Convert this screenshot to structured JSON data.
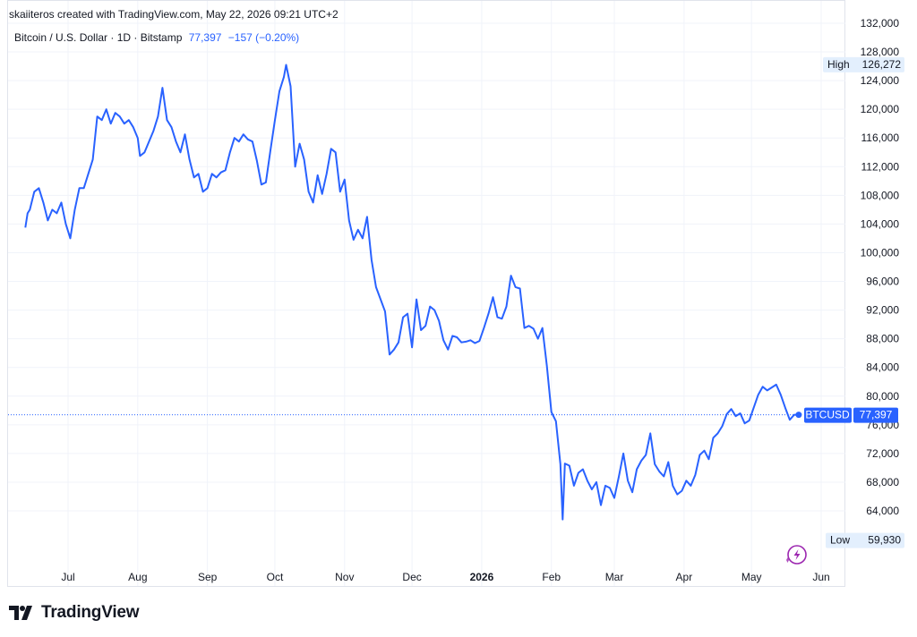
{
  "attribution": "skaiiteros created with TradingView.com, May 22, 2026 09:21 UTC+2",
  "legend": {
    "symbol": "Bitcoin / U.S. Dollar · 1D · Bitstamp",
    "price": "77,397",
    "change": "−157 (−0.20%)"
  },
  "badges": {
    "high_label": "High",
    "high_value": "126,272",
    "low_label": "Low",
    "low_value": "59,930",
    "ticker": "BTCUSD",
    "last_value": "77,397"
  },
  "brand": {
    "name": "TradingView"
  },
  "colors": {
    "line": "#2962ff",
    "badge_bg": "#2962ff",
    "grid": "#f0f3fa",
    "axis_text": "#131722",
    "hl_badge_bg": "#e3effd",
    "accent_icon": "#9c27b0"
  },
  "icons": [
    "lightning-icon",
    "tradingview-logo-icon"
  ],
  "chart_data": {
    "type": "line",
    "title": "",
    "xlabel": "",
    "ylabel": "",
    "ylim": [
      56000,
      132000
    ],
    "yticks": [
      64000,
      68000,
      72000,
      76000,
      80000,
      84000,
      88000,
      92000,
      96000,
      100000,
      104000,
      108000,
      112000,
      116000,
      120000,
      124000,
      128000,
      132000
    ],
    "ytick_labels": [
      "64,000",
      "68,000",
      "72,000",
      "76,000",
      "80,000",
      "84,000",
      "88,000",
      "92,000",
      "96,000",
      "100,000",
      "104,000",
      "108,000",
      "112,000",
      "116,000",
      "120,000",
      "124,000",
      "128,000",
      "132,000"
    ],
    "xlim": [
      "2025-06-11",
      "2026-06-15"
    ],
    "xticks": [
      {
        "date": "2025-07-01",
        "label": "Jul",
        "bold": false
      },
      {
        "date": "2025-08-01",
        "label": "Aug",
        "bold": false
      },
      {
        "date": "2025-09-01",
        "label": "Sep",
        "bold": false
      },
      {
        "date": "2025-10-01",
        "label": "Oct",
        "bold": false
      },
      {
        "date": "2025-11-01",
        "label": "Nov",
        "bold": false
      },
      {
        "date": "2025-12-01",
        "label": "Dec",
        "bold": false
      },
      {
        "date": "2026-01-01",
        "label": "2026",
        "bold": true
      },
      {
        "date": "2026-02-01",
        "label": "Feb",
        "bold": false
      },
      {
        "date": "2026-03-01",
        "label": "Mar",
        "bold": false
      },
      {
        "date": "2026-04-01",
        "label": "Apr",
        "bold": false
      },
      {
        "date": "2026-05-01",
        "label": "May",
        "bold": false
      },
      {
        "date": "2026-06-01",
        "label": "Jun",
        "bold": false
      }
    ],
    "grid": true,
    "last_price": 77397,
    "high": 126272,
    "low": 59930,
    "series": [
      {
        "name": "BTCUSD",
        "points": [
          [
            "2025-06-12",
            103500
          ],
          [
            "2025-06-13",
            105500
          ],
          [
            "2025-06-14",
            106000
          ],
          [
            "2025-06-16",
            108500
          ],
          [
            "2025-06-18",
            109000
          ],
          [
            "2025-06-20",
            107000
          ],
          [
            "2025-06-22",
            104500
          ],
          [
            "2025-06-24",
            106000
          ],
          [
            "2025-06-26",
            105500
          ],
          [
            "2025-06-28",
            107000
          ],
          [
            "2025-06-30",
            104000
          ],
          [
            "2025-07-02",
            102000
          ],
          [
            "2025-07-04",
            106000
          ],
          [
            "2025-07-06",
            109000
          ],
          [
            "2025-07-08",
            109000
          ],
          [
            "2025-07-10",
            111000
          ],
          [
            "2025-07-12",
            113000
          ],
          [
            "2025-07-14",
            119000
          ],
          [
            "2025-07-16",
            118500
          ],
          [
            "2025-07-18",
            120000
          ],
          [
            "2025-07-20",
            118000
          ],
          [
            "2025-07-22",
            119500
          ],
          [
            "2025-07-24",
            119000
          ],
          [
            "2025-07-26",
            118000
          ],
          [
            "2025-07-28",
            118500
          ],
          [
            "2025-07-30",
            117500
          ],
          [
            "2025-08-01",
            116000
          ],
          [
            "2025-08-02",
            113500
          ],
          [
            "2025-08-04",
            114000
          ],
          [
            "2025-08-06",
            115500
          ],
          [
            "2025-08-08",
            117000
          ],
          [
            "2025-08-10",
            119000
          ],
          [
            "2025-08-12",
            123000
          ],
          [
            "2025-08-14",
            118500
          ],
          [
            "2025-08-16",
            117500
          ],
          [
            "2025-08-18",
            115500
          ],
          [
            "2025-08-20",
            114000
          ],
          [
            "2025-08-22",
            116500
          ],
          [
            "2025-08-24",
            113000
          ],
          [
            "2025-08-26",
            110500
          ],
          [
            "2025-08-28",
            111000
          ],
          [
            "2025-08-30",
            108500
          ],
          [
            "2025-09-01",
            109000
          ],
          [
            "2025-09-03",
            111000
          ],
          [
            "2025-09-05",
            110500
          ],
          [
            "2025-09-07",
            111200
          ],
          [
            "2025-09-09",
            111500
          ],
          [
            "2025-09-11",
            114000
          ],
          [
            "2025-09-13",
            116000
          ],
          [
            "2025-09-15",
            115500
          ],
          [
            "2025-09-17",
            116500
          ],
          [
            "2025-09-19",
            115800
          ],
          [
            "2025-09-21",
            115500
          ],
          [
            "2025-09-23",
            112800
          ],
          [
            "2025-09-25",
            109500
          ],
          [
            "2025-09-27",
            109800
          ],
          [
            "2025-09-29",
            114200
          ],
          [
            "2025-10-01",
            118500
          ],
          [
            "2025-10-03",
            122500
          ],
          [
            "2025-10-05",
            124500
          ],
          [
            "2025-10-06",
            126200
          ],
          [
            "2025-10-08",
            123200
          ],
          [
            "2025-10-10",
            112000
          ],
          [
            "2025-10-12",
            115200
          ],
          [
            "2025-10-14",
            113000
          ],
          [
            "2025-10-16",
            108500
          ],
          [
            "2025-10-18",
            107000
          ],
          [
            "2025-10-20",
            110800
          ],
          [
            "2025-10-22",
            108200
          ],
          [
            "2025-10-24",
            111000
          ],
          [
            "2025-10-26",
            114500
          ],
          [
            "2025-10-28",
            114000
          ],
          [
            "2025-10-30",
            108500
          ],
          [
            "2025-11-01",
            110200
          ],
          [
            "2025-11-03",
            104500
          ],
          [
            "2025-11-05",
            101800
          ],
          [
            "2025-11-07",
            103200
          ],
          [
            "2025-11-09",
            102000
          ],
          [
            "2025-11-11",
            105000
          ],
          [
            "2025-11-13",
            99000
          ],
          [
            "2025-11-15",
            95200
          ],
          [
            "2025-11-17",
            93500
          ],
          [
            "2025-11-19",
            91800
          ],
          [
            "2025-11-21",
            85800
          ],
          [
            "2025-11-23",
            86500
          ],
          [
            "2025-11-25",
            87500
          ],
          [
            "2025-11-27",
            91000
          ],
          [
            "2025-11-29",
            91500
          ],
          [
            "2025-12-01",
            86800
          ],
          [
            "2025-12-03",
            93500
          ],
          [
            "2025-12-05",
            89200
          ],
          [
            "2025-12-07",
            89800
          ],
          [
            "2025-12-09",
            92500
          ],
          [
            "2025-12-11",
            92000
          ],
          [
            "2025-12-13",
            90500
          ],
          [
            "2025-12-15",
            87800
          ],
          [
            "2025-12-17",
            86500
          ],
          [
            "2025-12-19",
            88400
          ],
          [
            "2025-12-21",
            88200
          ],
          [
            "2025-12-23",
            87500
          ],
          [
            "2025-12-25",
            87600
          ],
          [
            "2025-12-27",
            87800
          ],
          [
            "2025-12-29",
            87400
          ],
          [
            "2025-12-31",
            87700
          ],
          [
            "2026-01-02",
            89500
          ],
          [
            "2026-01-04",
            91500
          ],
          [
            "2026-01-06",
            93800
          ],
          [
            "2026-01-08",
            91000
          ],
          [
            "2026-01-10",
            90800
          ],
          [
            "2026-01-12",
            92500
          ],
          [
            "2026-01-14",
            96800
          ],
          [
            "2026-01-16",
            95200
          ],
          [
            "2026-01-18",
            95000
          ],
          [
            "2026-01-20",
            89500
          ],
          [
            "2026-01-22",
            89800
          ],
          [
            "2026-01-24",
            89400
          ],
          [
            "2026-01-26",
            88000
          ],
          [
            "2026-01-28",
            89500
          ],
          [
            "2026-01-30",
            84200
          ],
          [
            "2026-02-01",
            77800
          ],
          [
            "2026-02-03",
            76500
          ],
          [
            "2026-02-05",
            70500
          ],
          [
            "2026-02-06",
            62800
          ],
          [
            "2026-02-07",
            70600
          ],
          [
            "2026-02-09",
            70300
          ],
          [
            "2026-02-11",
            67500
          ],
          [
            "2026-02-13",
            69300
          ],
          [
            "2026-02-15",
            69800
          ],
          [
            "2026-02-17",
            68200
          ],
          [
            "2026-02-19",
            67000
          ],
          [
            "2026-02-21",
            68000
          ],
          [
            "2026-02-23",
            64800
          ],
          [
            "2026-02-25",
            67500
          ],
          [
            "2026-02-27",
            67200
          ],
          [
            "2026-03-01",
            65800
          ],
          [
            "2026-03-03",
            68800
          ],
          [
            "2026-03-05",
            72000
          ],
          [
            "2026-03-07",
            68200
          ],
          [
            "2026-03-09",
            66600
          ],
          [
            "2026-03-11",
            69800
          ],
          [
            "2026-03-13",
            71000
          ],
          [
            "2026-03-15",
            71800
          ],
          [
            "2026-03-17",
            74800
          ],
          [
            "2026-03-19",
            70500
          ],
          [
            "2026-03-21",
            69500
          ],
          [
            "2026-03-23",
            68800
          ],
          [
            "2026-03-25",
            70800
          ],
          [
            "2026-03-27",
            67500
          ],
          [
            "2026-03-29",
            66300
          ],
          [
            "2026-03-31",
            66800
          ],
          [
            "2026-04-02",
            68200
          ],
          [
            "2026-04-04",
            67500
          ],
          [
            "2026-04-06",
            69000
          ],
          [
            "2026-04-08",
            71800
          ],
          [
            "2026-04-10",
            72400
          ],
          [
            "2026-04-12",
            71200
          ],
          [
            "2026-04-14",
            74200
          ],
          [
            "2026-04-16",
            74800
          ],
          [
            "2026-04-18",
            75800
          ],
          [
            "2026-04-20",
            77500
          ],
          [
            "2026-04-22",
            78200
          ],
          [
            "2026-04-24",
            77200
          ],
          [
            "2026-04-26",
            77600
          ],
          [
            "2026-04-28",
            76200
          ],
          [
            "2026-04-30",
            76600
          ],
          [
            "2026-05-02",
            78400
          ],
          [
            "2026-05-04",
            80200
          ],
          [
            "2026-05-06",
            81300
          ],
          [
            "2026-05-08",
            80800
          ],
          [
            "2026-05-10",
            81200
          ],
          [
            "2026-05-12",
            81600
          ],
          [
            "2026-05-14",
            80200
          ],
          [
            "2026-05-16",
            78400
          ],
          [
            "2026-05-18",
            76700
          ],
          [
            "2026-05-20",
            77400
          ],
          [
            "2026-05-22",
            77397
          ]
        ]
      }
    ]
  }
}
